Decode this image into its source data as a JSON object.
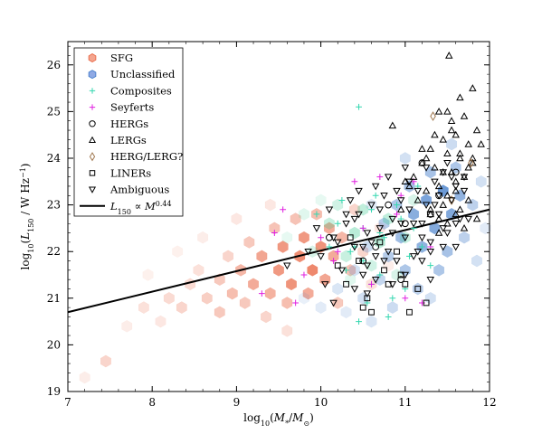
{
  "chart_data": {
    "type": "scatter",
    "title": "",
    "xlabel": "log10(M*/M⊙)",
    "ylabel": "log10(L150 / W Hz^-1)",
    "xlim": [
      7,
      12
    ],
    "ylim": [
      19,
      26.5
    ],
    "x_ticks": [
      7,
      8,
      9,
      10,
      11,
      12
    ],
    "y_ticks": [
      19,
      20,
      21,
      22,
      23,
      24,
      25,
      26
    ],
    "grid": false,
    "legend_position": "top-left",
    "fit_line": {
      "name": "L150 ∝ M^0.44",
      "x": [
        7,
        12
      ],
      "y": [
        20.7,
        22.9
      ],
      "color": "#000000"
    },
    "density_layers": [
      {
        "name": "SFG",
        "color": "#e8603c",
        "bins": [
          [
            7.2,
            19.3,
            0.15
          ],
          [
            7.45,
            19.65,
            0.35
          ],
          [
            7.7,
            20.4,
            0.15
          ],
          [
            7.9,
            20.8,
            0.25
          ],
          [
            8.1,
            20.5,
            0.2
          ],
          [
            8.2,
            21.0,
            0.3
          ],
          [
            8.35,
            20.8,
            0.35
          ],
          [
            8.45,
            21.3,
            0.3
          ],
          [
            8.55,
            21.6,
            0.25
          ],
          [
            8.65,
            21.0,
            0.4
          ],
          [
            8.8,
            20.7,
            0.45
          ],
          [
            8.8,
            21.4,
            0.45
          ],
          [
            8.9,
            21.9,
            0.35
          ],
          [
            8.95,
            21.1,
            0.55
          ],
          [
            9.05,
            21.6,
            0.6
          ],
          [
            9.1,
            20.9,
            0.45
          ],
          [
            9.15,
            22.2,
            0.45
          ],
          [
            9.2,
            21.3,
            0.7
          ],
          [
            9.3,
            21.9,
            0.75
          ],
          [
            9.35,
            20.6,
            0.35
          ],
          [
            9.4,
            21.1,
            0.65
          ],
          [
            9.45,
            22.5,
            0.5
          ],
          [
            9.5,
            21.6,
            0.85
          ],
          [
            9.55,
            22.1,
            0.85
          ],
          [
            9.6,
            20.9,
            0.55
          ],
          [
            9.65,
            21.3,
            0.9
          ],
          [
            9.7,
            22.7,
            0.5
          ],
          [
            9.75,
            21.9,
            0.95
          ],
          [
            9.8,
            22.3,
            0.85
          ],
          [
            9.85,
            21.1,
            0.7
          ],
          [
            9.9,
            21.6,
            1.0
          ],
          [
            9.95,
            22.8,
            0.55
          ],
          [
            10.0,
            22.1,
            0.9
          ],
          [
            10.05,
            21.4,
            0.75
          ],
          [
            10.1,
            22.5,
            0.7
          ],
          [
            10.15,
            21.9,
            0.7
          ],
          [
            10.2,
            20.9,
            0.45
          ],
          [
            10.25,
            22.3,
            0.6
          ],
          [
            10.35,
            21.6,
            0.5
          ],
          [
            10.4,
            22.9,
            0.35
          ],
          [
            10.5,
            22.0,
            0.35
          ],
          [
            10.6,
            21.3,
            0.25
          ],
          [
            10.7,
            22.5,
            0.2
          ],
          [
            8.6,
            22.3,
            0.15
          ],
          [
            8.3,
            22.0,
            0.12
          ],
          [
            9.0,
            22.7,
            0.2
          ],
          [
            9.4,
            23.0,
            0.2
          ],
          [
            7.95,
            21.5,
            0.12
          ],
          [
            10.8,
            21.7,
            0.15
          ],
          [
            9.6,
            20.3,
            0.25
          ]
        ]
      },
      {
        "name": "Unclassified",
        "color": "#3b78c8",
        "bins": [
          [
            9.8,
            21.0,
            0.15
          ],
          [
            10.0,
            20.8,
            0.2
          ],
          [
            10.2,
            21.2,
            0.25
          ],
          [
            10.3,
            20.7,
            0.2
          ],
          [
            10.4,
            21.6,
            0.3
          ],
          [
            10.5,
            21.0,
            0.3
          ],
          [
            10.55,
            22.1,
            0.35
          ],
          [
            10.6,
            20.5,
            0.25
          ],
          [
            10.7,
            21.4,
            0.4
          ],
          [
            10.75,
            22.6,
            0.5
          ],
          [
            10.8,
            21.9,
            0.5
          ],
          [
            10.85,
            20.8,
            0.35
          ],
          [
            10.9,
            23.0,
            0.55
          ],
          [
            10.95,
            22.3,
            0.65
          ],
          [
            11.0,
            21.6,
            0.55
          ],
          [
            11.05,
            23.4,
            0.6
          ],
          [
            11.1,
            22.8,
            0.8
          ],
          [
            11.15,
            21.2,
            0.45
          ],
          [
            11.2,
            22.1,
            0.75
          ],
          [
            11.25,
            23.1,
            0.9
          ],
          [
            11.3,
            23.7,
            0.6
          ],
          [
            11.35,
            22.5,
            0.85
          ],
          [
            11.4,
            21.6,
            0.55
          ],
          [
            11.45,
            23.3,
            1.0
          ],
          [
            11.5,
            22.0,
            0.6
          ],
          [
            11.55,
            22.8,
            0.85
          ],
          [
            11.6,
            23.8,
            0.55
          ],
          [
            11.65,
            23.2,
            0.75
          ],
          [
            11.7,
            22.3,
            0.45
          ],
          [
            11.8,
            23.0,
            0.45
          ],
          [
            11.85,
            21.8,
            0.3
          ],
          [
            11.9,
            23.5,
            0.3
          ],
          [
            11.95,
            22.5,
            0.2
          ],
          [
            11.3,
            21.0,
            0.3
          ],
          [
            10.6,
            23.0,
            0.2
          ],
          [
            11.0,
            24.0,
            0.3
          ],
          [
            11.55,
            24.3,
            0.35
          ]
        ]
      },
      {
        "name": "Composites",
        "color": "#2ec78a",
        "bins": [
          [
            9.6,
            22.3,
            0.15
          ],
          [
            9.8,
            22.8,
            0.2
          ],
          [
            9.9,
            22.0,
            0.25
          ],
          [
            10.1,
            22.6,
            0.35
          ],
          [
            10.2,
            23.0,
            0.3
          ],
          [
            10.3,
            21.9,
            0.35
          ],
          [
            10.4,
            22.4,
            0.45
          ],
          [
            10.5,
            22.9,
            0.4
          ],
          [
            10.6,
            21.7,
            0.3
          ],
          [
            10.7,
            22.2,
            0.45
          ],
          [
            10.8,
            22.7,
            0.4
          ],
          [
            10.9,
            21.5,
            0.25
          ],
          [
            11.0,
            22.3,
            0.35
          ],
          [
            11.1,
            23.1,
            0.25
          ],
          [
            10.35,
            21.4,
            0.2
          ],
          [
            10.0,
            23.1,
            0.15
          ]
        ]
      }
    ],
    "series": [
      {
        "name": "SFG",
        "marker": "hexagon",
        "color": "#e8603c",
        "x": [],
        "y": []
      },
      {
        "name": "Unclassified",
        "marker": "hexagon",
        "color": "#3b78c8",
        "x": [],
        "y": []
      },
      {
        "name": "Composites",
        "marker": "plus",
        "color": "#34d7b0",
        "x": [
          10.2,
          10.4,
          10.5,
          10.6,
          10.7,
          10.75,
          10.85,
          10.95,
          11.05,
          11.1,
          10.3,
          10.55,
          10.9,
          11.2,
          10.45,
          10.65,
          10.8,
          10.35,
          11.0,
          10.25,
          10.5,
          10.1,
          11.3,
          10.45,
          9.95,
          10.7,
          10.6,
          11.15
        ],
        "y": [
          22.6,
          22.1,
          21.8,
          22.9,
          21.5,
          22.3,
          21.0,
          22.7,
          21.9,
          22.5,
          21.6,
          20.9,
          23.0,
          22.1,
          25.1,
          23.2,
          20.6,
          22.0,
          21.2,
          23.1,
          22.5,
          22.1,
          21.7,
          20.5,
          22.8,
          22.4,
          21.3,
          23.4
        ]
      },
      {
        "name": "Seyferts",
        "marker": "plus",
        "color": "#e020e0",
        "x": [
          9.55,
          9.8,
          9.3,
          10.0,
          10.2,
          10.6,
          10.9,
          11.1,
          11.3,
          10.4,
          10.7,
          9.45,
          10.95,
          11.0,
          10.15,
          11.2,
          10.5,
          9.7
        ],
        "y": [
          22.9,
          21.5,
          21.1,
          22.3,
          22.0,
          21.3,
          22.8,
          23.5,
          22.1,
          23.5,
          23.6,
          22.4,
          23.2,
          21.0,
          21.8,
          20.9,
          22.5,
          20.9
        ]
      },
      {
        "name": "HERGs",
        "marker": "circle",
        "color": "#000000",
        "x": [
          10.1,
          10.5,
          10.8,
          11.0,
          11.2,
          11.4,
          10.65,
          11.3,
          10.95,
          11.6
        ],
        "y": [
          22.3,
          21.8,
          23.0,
          22.6,
          23.9,
          23.2,
          22.1,
          22.8,
          21.4,
          23.7
        ]
      },
      {
        "name": "LERGs",
        "marker": "triangle-up",
        "color": "#000000",
        "x": [
          11.52,
          11.8,
          11.65,
          11.4,
          11.55,
          11.7,
          11.85,
          11.6,
          11.75,
          11.45,
          11.3,
          11.9,
          11.5,
          11.65,
          11.2,
          11.35,
          11.8,
          11.55,
          11.7,
          11.6,
          11.4,
          11.25,
          11.1,
          11.5,
          11.75,
          11.45,
          11.3,
          11.6,
          11.85,
          11.05,
          11.15,
          11.5,
          11.7,
          11.4,
          11.55,
          11.65,
          11.35,
          11.2,
          11.8,
          10.85,
          11.0,
          11.45,
          11.6,
          11.75,
          11.3,
          11.5,
          10.95,
          11.25,
          11.65,
          11.4
        ],
        "y": [
          26.2,
          25.5,
          25.3,
          25.0,
          24.8,
          24.9,
          24.6,
          24.5,
          24.3,
          24.4,
          24.2,
          24.3,
          24.1,
          24.0,
          23.9,
          23.8,
          23.9,
          23.7,
          23.6,
          23.5,
          23.4,
          23.3,
          23.6,
          23.2,
          23.1,
          23.0,
          22.9,
          22.8,
          22.7,
          23.4,
          23.1,
          22.6,
          22.5,
          22.4,
          24.6,
          24.1,
          24.5,
          24.2,
          24.0,
          24.7,
          23.5,
          23.7,
          23.3,
          23.8,
          22.8,
          25.0,
          22.9,
          24.0,
          22.9,
          22.7
        ]
      },
      {
        "name": "HERG/LERG?",
        "marker": "diamond",
        "color": "#a07850",
        "x": [
          11.33,
          11.78,
          11.55
        ],
        "y": [
          24.9,
          23.9,
          23.1
        ]
      },
      {
        "name": "LINERs",
        "marker": "square",
        "color": "#000000",
        "x": [
          10.3,
          10.55,
          10.8,
          11.05,
          10.95,
          10.45,
          10.7,
          11.25,
          10.2,
          10.6,
          10.9,
          11.15,
          10.35,
          11.0,
          10.75,
          10.5
        ],
        "y": [
          21.3,
          21.0,
          21.3,
          20.7,
          21.5,
          21.8,
          22.2,
          20.9,
          21.7,
          20.7,
          22.0,
          21.2,
          22.3,
          21.3,
          21.6,
          20.8
        ]
      },
      {
        "name": "Ambiguous",
        "marker": "triangle-down",
        "color": "#000000",
        "x": [
          9.6,
          9.85,
          10.0,
          10.1,
          10.15,
          10.25,
          10.3,
          10.4,
          10.45,
          10.5,
          10.55,
          10.6,
          10.65,
          10.7,
          10.75,
          10.8,
          10.85,
          10.9,
          10.95,
          11.0,
          11.05,
          11.1,
          11.15,
          11.2,
          11.25,
          11.3,
          11.35,
          11.4,
          11.45,
          11.5,
          11.55,
          11.6,
          11.65,
          11.7,
          10.35,
          10.45,
          10.6,
          10.7,
          10.85,
          10.95,
          11.05,
          11.15,
          11.25,
          11.35,
          11.45,
          11.55,
          10.2,
          10.4,
          10.55,
          10.75,
          10.9,
          11.0,
          11.1,
          11.2,
          11.3,
          11.4,
          11.5,
          11.6,
          10.65,
          10.8,
          10.05,
          9.95,
          10.5,
          11.7,
          11.75,
          10.3,
          10.15,
          10.65,
          11.2,
          11.45,
          11.0,
          10.85,
          10.4,
          10.55,
          11.3,
          11.6
        ],
        "y": [
          21.7,
          22.0,
          21.9,
          22.9,
          22.3,
          21.6,
          22.6,
          22.1,
          22.8,
          21.5,
          22.4,
          23.0,
          21.9,
          22.5,
          23.2,
          22.0,
          22.7,
          21.8,
          23.1,
          22.3,
          22.9,
          21.9,
          23.3,
          22.6,
          23.0,
          22.2,
          23.5,
          22.8,
          23.7,
          22.4,
          23.1,
          23.4,
          22.7,
          23.6,
          23.1,
          23.3,
          22.2,
          22.9,
          22.4,
          22.6,
          23.5,
          22.0,
          23.8,
          23.0,
          22.5,
          23.6,
          22.2,
          22.7,
          21.7,
          21.8,
          23.3,
          21.5,
          22.6,
          21.8,
          21.4,
          23.2,
          23.9,
          22.1,
          23.4,
          23.6,
          21.3,
          22.5,
          22.1,
          23.3,
          22.7,
          22.8,
          20.9,
          21.4,
          22.3,
          22.1,
          23.8,
          21.3,
          21.2,
          21.1,
          22.0,
          22.6
        ]
      }
    ],
    "legend": [
      {
        "label": "SFG",
        "marker": "hexagon",
        "color": "#f4a58f",
        "stroke": "#e8603c"
      },
      {
        "label": "Unclassified",
        "marker": "hexagon",
        "color": "#8fa9e4",
        "stroke": "#3b78c8"
      },
      {
        "label": "Composites",
        "marker": "plus",
        "color": "#34d7b0"
      },
      {
        "label": "Seyferts",
        "marker": "plus",
        "color": "#e020e0"
      },
      {
        "label": "HERGs",
        "marker": "circle",
        "color": "#000000"
      },
      {
        "label": "LERGs",
        "marker": "triangle-up",
        "color": "#000000"
      },
      {
        "label": "HERG/LERG?",
        "marker": "diamond",
        "color": "#a07850"
      },
      {
        "label": "LINERs",
        "marker": "square",
        "color": "#000000"
      },
      {
        "label": "Ambiguous",
        "marker": "triangle-down",
        "color": "#000000"
      },
      {
        "label": "L150 ∝ M^0.44",
        "marker": "line",
        "color": "#000000"
      }
    ]
  }
}
